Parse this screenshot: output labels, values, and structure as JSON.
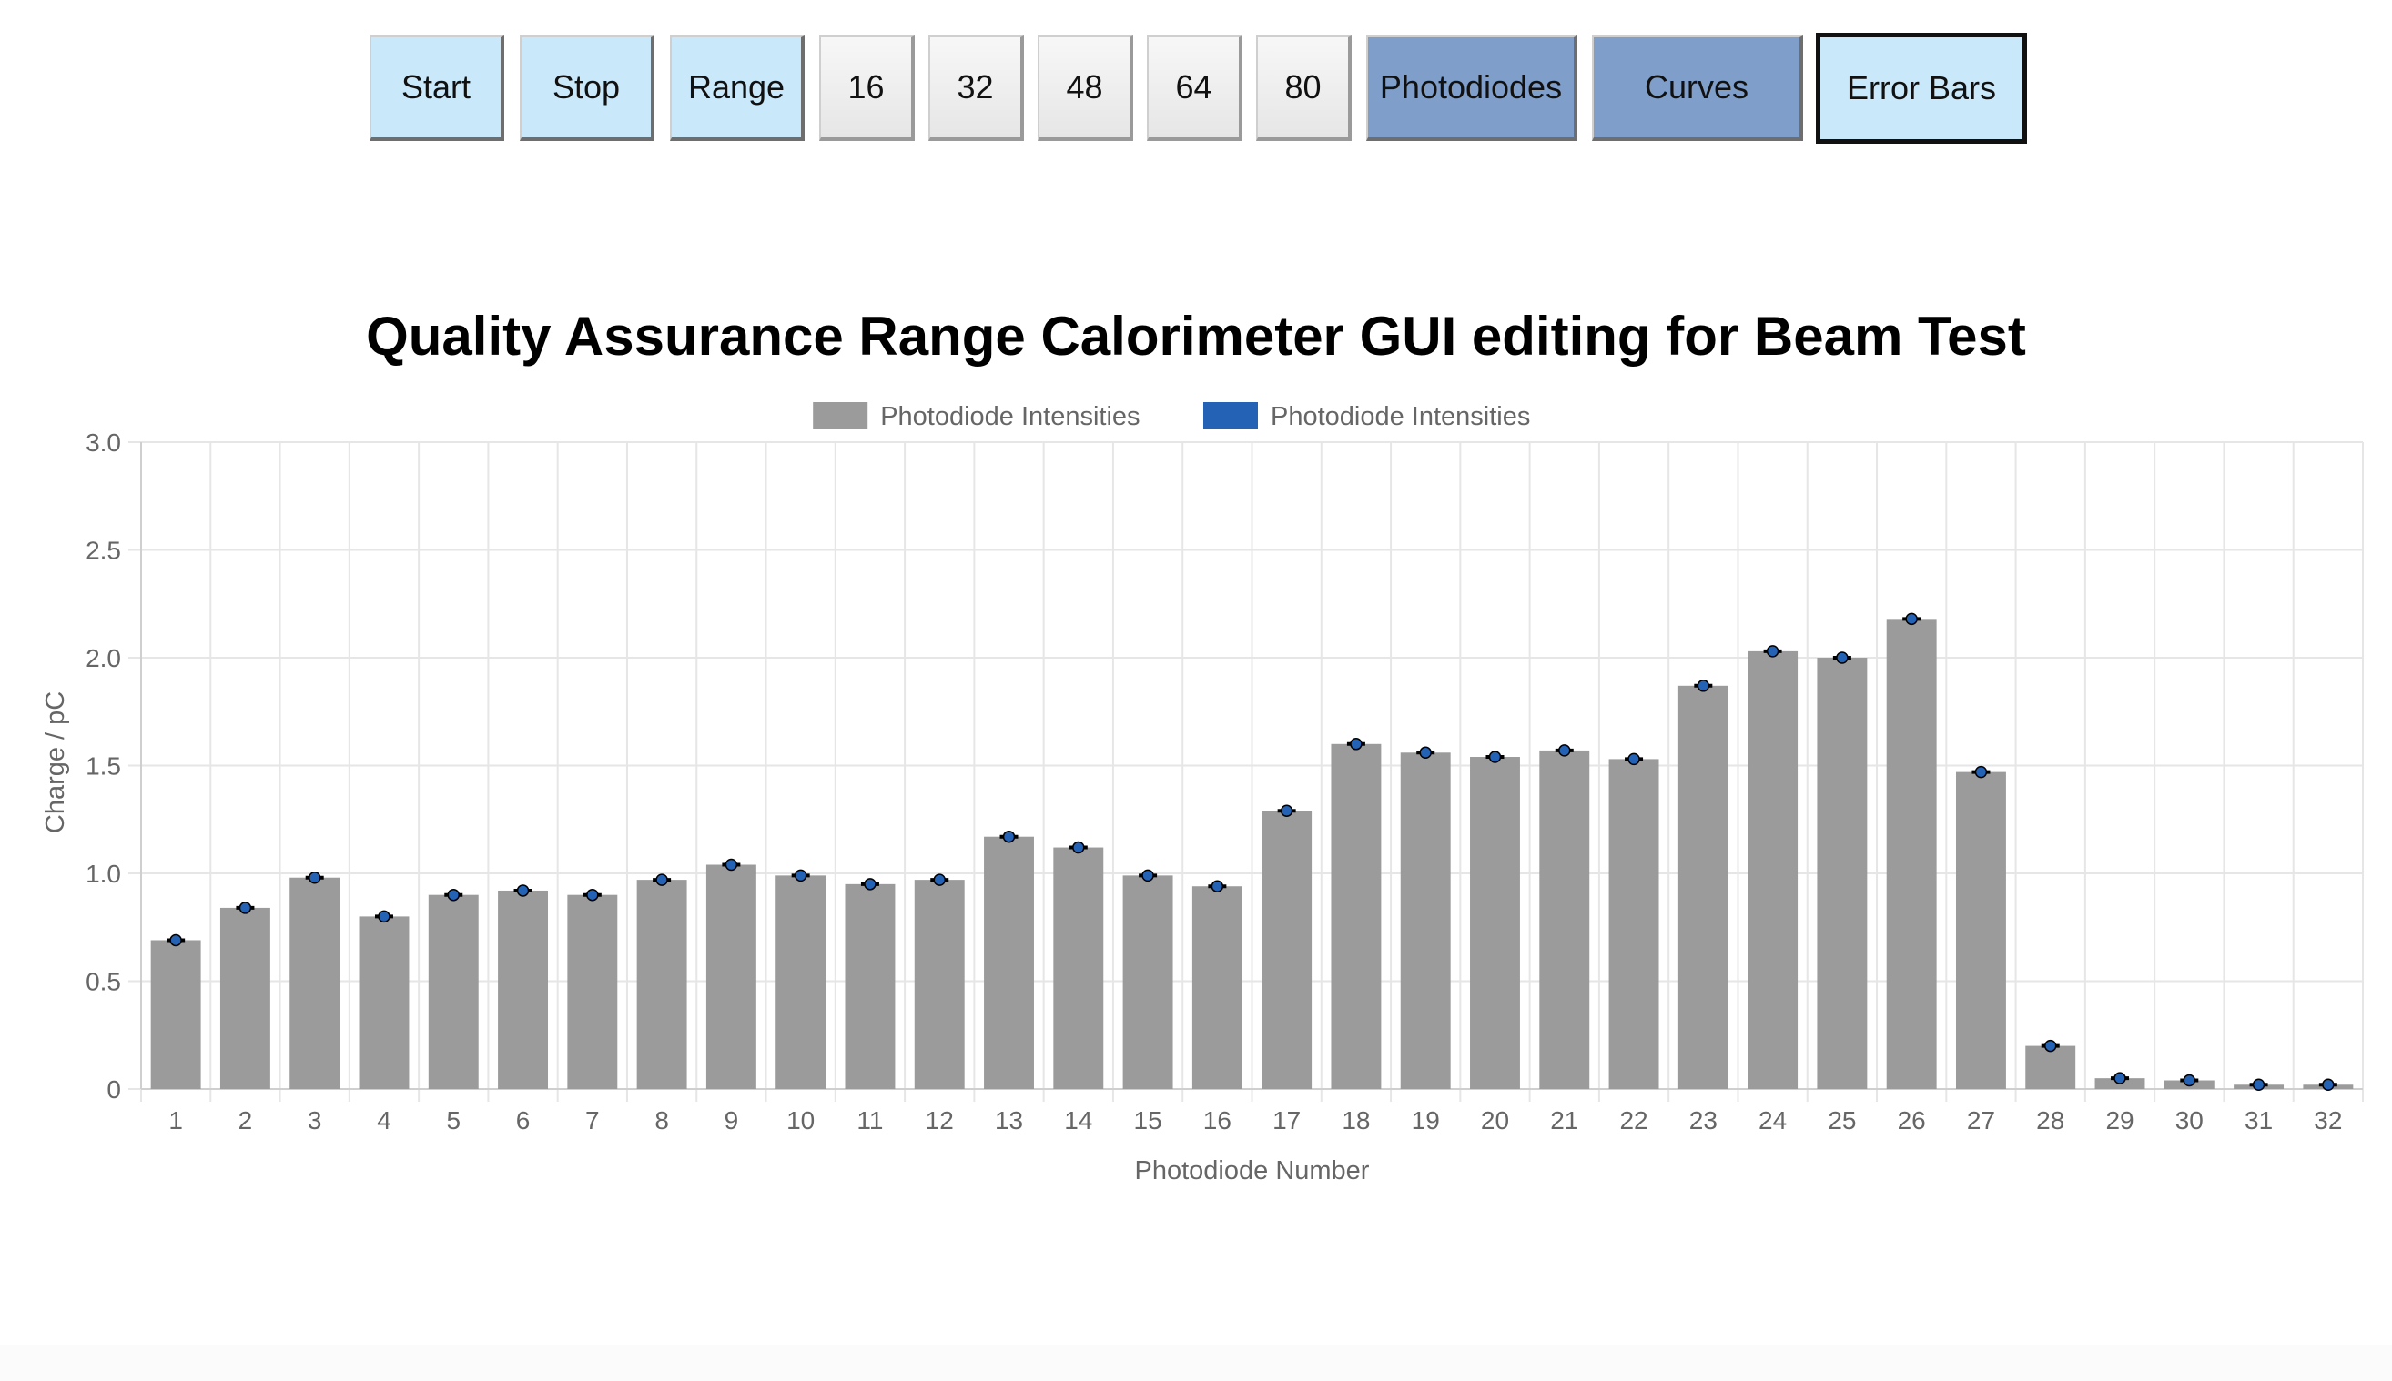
{
  "toolbar": {
    "buttons": [
      {
        "label": "Start",
        "style": "light"
      },
      {
        "label": "Stop",
        "style": "light"
      },
      {
        "label": "Range",
        "style": "light"
      },
      {
        "label": "16",
        "style": "grey"
      },
      {
        "label": "32",
        "style": "grey"
      },
      {
        "label": "48",
        "style": "grey"
      },
      {
        "label": "64",
        "style": "grey"
      },
      {
        "label": "80",
        "style": "grey"
      },
      {
        "label": "Photodiodes",
        "style": "dark"
      },
      {
        "label": "Curves",
        "style": "dark"
      },
      {
        "label": "Error Bars",
        "style": "active"
      }
    ]
  },
  "colors": {
    "bar": "#9b9b9b",
    "error_marker": "#2462b5",
    "error_cap": "#000000",
    "grid": "#e6e6e6",
    "axis_text": "#666666"
  },
  "chart_data": {
    "type": "bar",
    "title": "Quality Assurance Range Calorimeter GUI editing for Beam Test",
    "xlabel": "Photodiode Number",
    "ylabel": "Charge / pC",
    "ylim": [
      0,
      3.0
    ],
    "yticks": [
      "0",
      "0.5",
      "1.0",
      "1.5",
      "2.0",
      "2.5",
      "3.0"
    ],
    "grid": true,
    "legend_position": "top",
    "legend": [
      {
        "label": "Photodiode Intensities",
        "color": "#9b9b9b"
      },
      {
        "label": "Photodiode Intensities",
        "color": "#2462b5"
      }
    ],
    "categories": [
      "1",
      "2",
      "3",
      "4",
      "5",
      "6",
      "7",
      "8",
      "9",
      "10",
      "11",
      "12",
      "13",
      "14",
      "15",
      "16",
      "17",
      "18",
      "19",
      "20",
      "21",
      "22",
      "23",
      "24",
      "25",
      "26",
      "27",
      "28",
      "29",
      "30",
      "31",
      "32"
    ],
    "series": [
      {
        "name": "Photodiode Intensities",
        "values": [
          0.69,
          0.84,
          0.98,
          0.8,
          0.9,
          0.92,
          0.9,
          0.97,
          1.04,
          0.99,
          0.95,
          0.97,
          1.17,
          1.12,
          0.99,
          0.94,
          1.29,
          1.6,
          1.56,
          1.54,
          1.57,
          1.53,
          1.87,
          2.03,
          2.0,
          2.18,
          1.47,
          0.2,
          0.05,
          0.04,
          0.02,
          0.02
        ]
      },
      {
        "name": "Photodiode Intensities",
        "values": [
          0.69,
          0.84,
          0.98,
          0.8,
          0.9,
          0.92,
          0.9,
          0.97,
          1.04,
          0.99,
          0.95,
          0.97,
          1.17,
          1.12,
          0.99,
          0.94,
          1.29,
          1.6,
          1.56,
          1.54,
          1.57,
          1.53,
          1.87,
          2.03,
          2.0,
          2.18,
          1.47,
          0.2,
          0.05,
          0.04,
          0.02,
          0.02
        ]
      }
    ]
  }
}
